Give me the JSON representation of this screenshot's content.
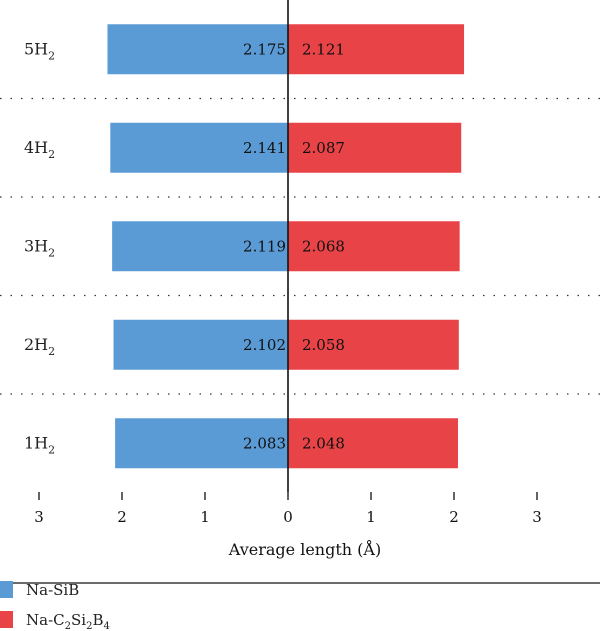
{
  "chart_data": {
    "type": "bar",
    "orientation": "horizontal-diverging",
    "categories": [
      "1H2",
      "2H2",
      "3H2",
      "4H2",
      "5H2"
    ],
    "category_parts": [
      {
        "base": "1H",
        "sub": "2"
      },
      {
        "base": "2H",
        "sub": "2"
      },
      {
        "base": "3H",
        "sub": "2"
      },
      {
        "base": "4H",
        "sub": "2"
      },
      {
        "base": "5H",
        "sub": "2"
      }
    ],
    "series": [
      {
        "name": "Na-SiB",
        "direction": "left",
        "color": "#5b9bd5",
        "values": [
          2.083,
          2.102,
          2.119,
          2.141,
          2.175
        ]
      },
      {
        "name": "Na-C2Si2B4",
        "direction": "right",
        "color": "#e84347",
        "values": [
          2.048,
          2.058,
          2.068,
          2.087,
          2.121
        ]
      }
    ],
    "xlabel": "Average length (Å)",
    "xticks": [
      -3,
      -2,
      -1,
      0,
      1,
      2,
      3
    ],
    "xtick_labels": [
      "3",
      "2",
      "1",
      "0",
      "1",
      "2",
      "3"
    ],
    "xlim": [
      -3.5,
      3.6
    ],
    "grid": "dotted horizontal separators between categories",
    "legend": {
      "placement": "bottom-left",
      "entries": [
        {
          "parts": [
            {
              "t": "Na-SiB"
            }
          ],
          "color": "#5b9bd5"
        },
        {
          "parts": [
            {
              "t": "Na-C"
            },
            {
              "t": "2",
              "sub": true
            },
            {
              "t": "Si"
            },
            {
              "t": "2",
              "sub": true
            },
            {
              "t": "B"
            },
            {
              "t": "4",
              "sub": true
            }
          ],
          "color": "#e84347"
        }
      ]
    }
  }
}
